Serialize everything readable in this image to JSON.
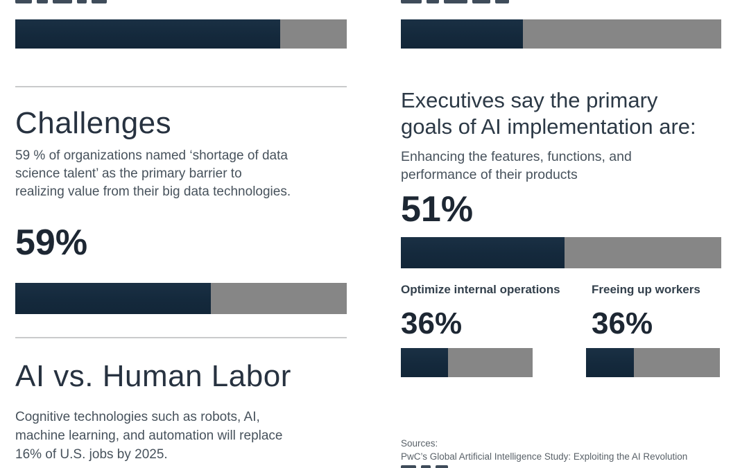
{
  "page": {
    "type": "infographic",
    "colors": {
      "bar_fill": "#14293c",
      "bar_track": "#868686",
      "heading": "#273240",
      "body_text": "#47525c",
      "divider": "#c9cacb",
      "background": "#ffffff"
    }
  },
  "left": {
    "top_bar": {
      "percent": 80,
      "label_visible": false,
      "note": "label cut off at top edge"
    },
    "challenges": {
      "heading": "Challenges",
      "body_lines": [
        "59 % of organizations named ‘shortage of data",
        "science talent’ as the primary barrier to",
        "realizing value from their big data technologies."
      ],
      "stat": "59%",
      "bar_percent": 59
    },
    "ai_vs_human": {
      "heading": "AI vs. Human Labor",
      "body_lines": [
        "Cognitive technologies such as robots, AI,",
        "machine learning, and automation will replace",
        "16% of U.S. jobs by 2025."
      ]
    }
  },
  "right": {
    "top_bar": {
      "percent": 38,
      "label_visible": false,
      "note": "label cut off at top edge"
    },
    "goals": {
      "heading_lines": [
        "Executives say the primary",
        "goals of AI implementation are:"
      ],
      "item1": {
        "label_lines": [
          "Enhancing the features, functions, and",
          "performance of their products"
        ],
        "stat": "51%",
        "bar_percent": 51
      },
      "item2": {
        "label": "Optimize internal operations",
        "stat": "36%",
        "bar_percent": 36
      },
      "item3": {
        "label": "Freeing up workers",
        "stat": "36%",
        "bar_percent": 36
      }
    },
    "sources": {
      "title": "Sources:",
      "line1": "PwC’s Global Artificial Intelligence Study: Exploiting the AI Revolution"
    }
  },
  "chart_data": {
    "type": "bar",
    "title": "AI adoption infographic — horizontal progress bars (percent of 100)",
    "items": [
      {
        "label": null,
        "section": "top-left bar (caption cut off)",
        "percent": 80
      },
      {
        "label": null,
        "section": "top-right bar (caption cut off)",
        "percent": 38
      },
      {
        "label": "Shortage of data science talent as primary barrier (Challenges)",
        "percent": 59
      },
      {
        "label": "Enhancing the features, functions, and performance of their products",
        "percent": 51
      },
      {
        "label": "Optimize internal operations",
        "percent": 36
      },
      {
        "label": "Freeing up workers",
        "percent": 36
      }
    ],
    "xlim": [
      0,
      100
    ],
    "legend": false,
    "grid": false
  }
}
